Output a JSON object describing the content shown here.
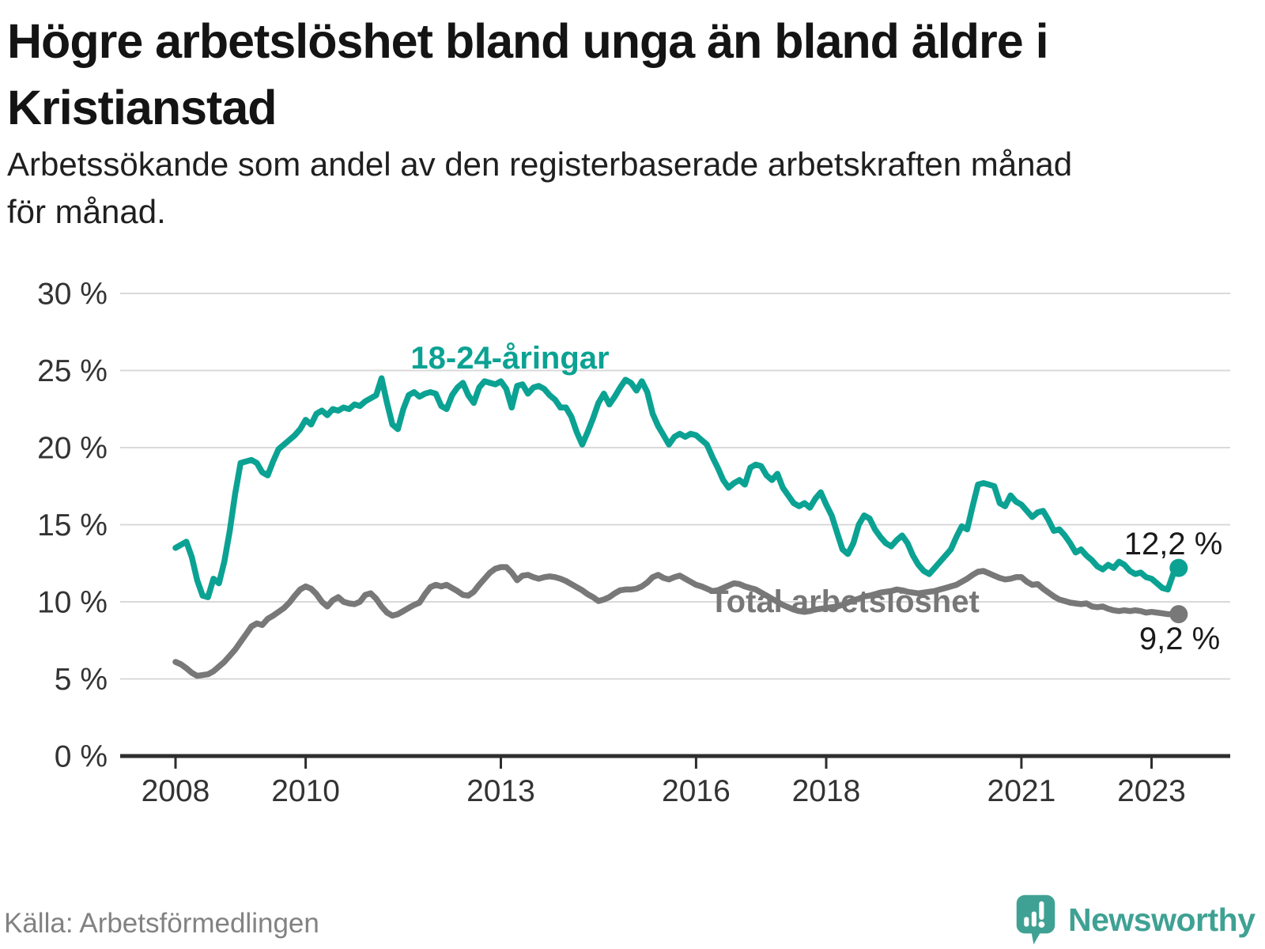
{
  "header": {
    "title_line1": "Högre arbetslöshet bland unga än bland äldre i",
    "title_line2": "Kristianstad",
    "subtitle_line1": "Arbetssökande som andel av den registerbaserade arbetskraften månad",
    "subtitle_line2": "för månad."
  },
  "footer": {
    "source": "Källa: Arbetsförmedlingen",
    "brand_name": "Newsworthy"
  },
  "colors": {
    "young_series": "#0ba293",
    "total_series": "#787878",
    "gridline": "#d9d9d9",
    "axis": "#2e2e2e",
    "tick_label": "#333333",
    "brand": "#3fa193"
  },
  "chart_data": {
    "type": "line",
    "title": "Högre arbetslöshet bland unga än bland äldre i Kristianstad",
    "subtitle": "Arbetssökande som andel av den registerbaserade arbetskraften månad för månad.",
    "unit": "%",
    "frequency": "monthly",
    "x_start": "2008-01",
    "x_end": "2023-06",
    "ylim": [
      0,
      30
    ],
    "grid": true,
    "legend_position": "inline-labels",
    "x_ticks": [
      {
        "label": "2008",
        "year": 2008
      },
      {
        "label": "2010",
        "year": 2010
      },
      {
        "label": "2013",
        "year": 2013
      },
      {
        "label": "2016",
        "year": 2016
      },
      {
        "label": "2018",
        "year": 2018
      },
      {
        "label": "2021",
        "year": 2021
      },
      {
        "label": "2023",
        "year": 2023
      }
    ],
    "y_ticks": [
      {
        "label": "0 %",
        "value": 0
      },
      {
        "label": "5 %",
        "value": 5
      },
      {
        "label": "10 %",
        "value": 10
      },
      {
        "label": "15 %",
        "value": 15
      },
      {
        "label": "20 %",
        "value": 20
      },
      {
        "label": "25 %",
        "value": 25
      },
      {
        "label": "30 %",
        "value": 30
      }
    ],
    "series": [
      {
        "name": "18-24-åringar",
        "color": "#0ba293",
        "end_label": "12,2 %",
        "end_value": 12.2,
        "values": [
          13.5,
          13.7,
          13.9,
          12.9,
          11.4,
          10.4,
          10.3,
          11.5,
          11.2,
          12.6,
          14.6,
          17.0,
          19.0,
          19.1,
          19.2,
          19.0,
          18.4,
          18.2,
          19.1,
          19.9,
          20.2,
          20.5,
          20.8,
          21.2,
          21.8,
          21.5,
          22.2,
          22.4,
          22.1,
          22.5,
          22.4,
          22.6,
          22.5,
          22.8,
          22.7,
          23.0,
          23.2,
          23.4,
          24.5,
          22.9,
          21.5,
          21.2,
          22.5,
          23.4,
          23.6,
          23.3,
          23.5,
          23.6,
          23.5,
          22.7,
          22.5,
          23.4,
          23.9,
          24.2,
          23.4,
          22.9,
          23.9,
          24.3,
          24.2,
          24.1,
          24.3,
          23.8,
          22.6,
          24.0,
          24.1,
          23.5,
          23.9,
          24.0,
          23.8,
          23.4,
          23.1,
          22.6,
          22.6,
          22.0,
          21.0,
          20.2,
          21.0,
          21.9,
          22.9,
          23.5,
          22.8,
          23.3,
          23.9,
          24.4,
          24.2,
          23.7,
          24.3,
          23.6,
          22.2,
          21.4,
          20.8,
          20.2,
          20.7,
          20.9,
          20.7,
          20.9,
          20.8,
          20.5,
          20.2,
          19.4,
          18.7,
          17.9,
          17.4,
          17.7,
          17.9,
          17.6,
          18.7,
          18.9,
          18.8,
          18.2,
          17.9,
          18.3,
          17.4,
          16.9,
          16.4,
          16.2,
          16.4,
          16.1,
          16.7,
          17.1,
          16.3,
          15.6,
          14.5,
          13.4,
          13.1,
          13.8,
          15.0,
          15.6,
          15.4,
          14.7,
          14.2,
          13.8,
          13.6,
          14.0,
          14.3,
          13.8,
          13.0,
          12.4,
          12.0,
          11.8,
          12.2,
          12.6,
          13.0,
          13.4,
          14.2,
          14.9,
          14.7,
          16.2,
          17.6,
          17.7,
          17.6,
          17.5,
          16.4,
          16.2,
          16.9,
          16.5,
          16.3,
          15.9,
          15.5,
          15.8,
          15.9,
          15.3,
          14.6,
          14.7,
          14.3,
          13.8,
          13.2,
          13.4,
          13.0,
          12.7,
          12.3,
          12.1,
          12.4,
          12.2,
          12.6,
          12.4,
          12.0,
          11.8,
          11.9,
          11.6,
          11.5,
          11.2,
          10.9,
          10.8,
          11.8,
          12.2
        ]
      },
      {
        "name": "Total arbetslöshet",
        "color": "#787878",
        "end_label": "9,2 %",
        "end_value": 9.2,
        "values": [
          6.1,
          5.95,
          5.7,
          5.4,
          5.2,
          5.25,
          5.3,
          5.5,
          5.8,
          6.1,
          6.5,
          6.9,
          7.4,
          7.9,
          8.4,
          8.6,
          8.5,
          8.9,
          9.1,
          9.35,
          9.6,
          9.95,
          10.4,
          10.8,
          11.0,
          10.85,
          10.5,
          10.0,
          9.7,
          10.1,
          10.3,
          10.0,
          9.9,
          9.85,
          10.0,
          10.45,
          10.55,
          10.2,
          9.7,
          9.3,
          9.1,
          9.2,
          9.4,
          9.6,
          9.8,
          9.95,
          10.5,
          10.95,
          11.1,
          11.0,
          11.1,
          10.9,
          10.7,
          10.45,
          10.4,
          10.65,
          11.1,
          11.5,
          11.9,
          12.15,
          12.25,
          12.25,
          11.9,
          11.4,
          11.7,
          11.75,
          11.6,
          11.5,
          11.6,
          11.65,
          11.6,
          11.5,
          11.35,
          11.15,
          10.95,
          10.75,
          10.5,
          10.3,
          10.05,
          10.15,
          10.3,
          10.55,
          10.75,
          10.8,
          10.8,
          10.85,
          11.0,
          11.25,
          11.6,
          11.75,
          11.55,
          11.45,
          11.6,
          11.7,
          11.5,
          11.3,
          11.1,
          11.0,
          10.85,
          10.7,
          10.75,
          10.9,
          11.05,
          11.2,
          11.15,
          11.0,
          10.9,
          10.8,
          10.6,
          10.4,
          10.2,
          10.0,
          9.8,
          9.65,
          9.5,
          9.4,
          9.35,
          9.4,
          9.5,
          9.55,
          9.6,
          9.65,
          9.7,
          9.8,
          9.95,
          10.1,
          10.2,
          10.35,
          10.4,
          10.5,
          10.6,
          10.65,
          10.7,
          10.8,
          10.75,
          10.65,
          10.6,
          10.55,
          10.6,
          10.65,
          10.7,
          10.8,
          10.9,
          11.0,
          11.1,
          11.3,
          11.5,
          11.75,
          11.95,
          12.0,
          11.85,
          11.7,
          11.55,
          11.45,
          11.5,
          11.6,
          11.6,
          11.3,
          11.1,
          11.15,
          10.85,
          10.6,
          10.35,
          10.15,
          10.05,
          9.95,
          9.9,
          9.85,
          9.9,
          9.7,
          9.65,
          9.7,
          9.55,
          9.45,
          9.4,
          9.45,
          9.4,
          9.45,
          9.4,
          9.3,
          9.35,
          9.3,
          9.25,
          9.2,
          9.2,
          9.2
        ]
      }
    ]
  }
}
